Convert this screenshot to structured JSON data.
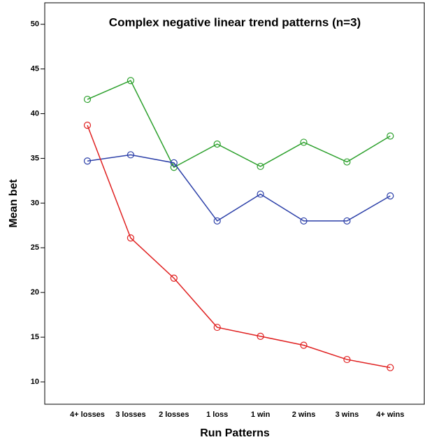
{
  "chart_data": {
    "type": "line",
    "title": "Complex negative linear trend patterns (n=3)",
    "x_label": "Run Patterns",
    "y_label": "Mean bet",
    "categories": [
      "4+ losses",
      "3 losses",
      "2 losses",
      "1 loss",
      "1 win",
      "2 wins",
      "3 wins",
      "4+ wins"
    ],
    "series": [
      {
        "color": "#2ca02c",
        "values": [
          41.6,
          43.7,
          34.0,
          36.6,
          34.1,
          36.8,
          34.6,
          37.5
        ]
      },
      {
        "color": "#2b3fa8",
        "values": [
          34.7,
          35.4,
          34.5,
          28.0,
          31.0,
          28.0,
          28.0,
          30.8
        ]
      },
      {
        "color": "#e02020",
        "values": [
          38.7,
          26.1,
          21.6,
          16.1,
          15.1,
          14.1,
          12.5,
          11.6
        ]
      }
    ],
    "ylim": [
      7.5,
      52.4
    ],
    "yticks": [
      10,
      15,
      20,
      25,
      30,
      35,
      40,
      45,
      50
    ],
    "grid": false
  }
}
